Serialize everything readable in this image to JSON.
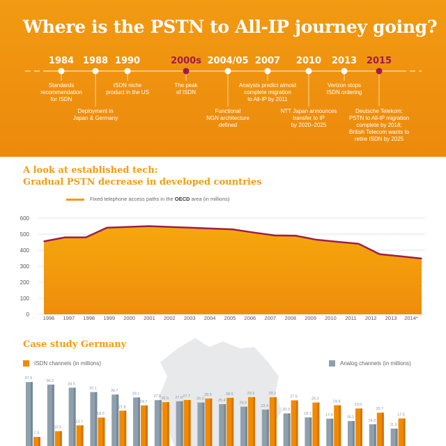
{
  "title": "Where is the PSTN to All-IP journey going?",
  "timeline": [
    {
      "year": "1984",
      "text": "Standards\nrecommendation\nfor ISDN",
      "highlight": false
    },
    {
      "year": "1988",
      "text": "Deployment in\nJapan & Germany",
      "highlight": false
    },
    {
      "year": "1990",
      "text": "ISDN niche\nproduct in the US",
      "highlight": false
    },
    {
      "year": "2000s",
      "text": "The peak\nof ISDN",
      "highlight": true
    },
    {
      "year": "2004/05",
      "text": "Functional\nNGN architecture\ndefined",
      "highlight": false
    },
    {
      "year": "2007",
      "text": "Analysts predict almost\ncomplete migration\nto All-IP by 2011",
      "highlight": false
    },
    {
      "year": "2010",
      "text": "NTT Japan announces\ntransfer to IP\nby 2020–2025",
      "highlight": false
    },
    {
      "year": "2013",
      "text": "Verizon stops\nISDN ordering",
      "highlight": false
    },
    {
      "year": "2015",
      "text": "Deutsche Telekom:\nPSTN to All-IP migration\ncomplete by 2018;\nBritish Telecom wants to\nretire ISDN by 2025",
      "highlight": true
    }
  ],
  "section1": {
    "line1": "A look at established tech:",
    "line2": "Gradual PSTN decrease in developed countries"
  },
  "section2": {
    "title": "Case study Germany"
  },
  "colors": {
    "orange": "#f39c12",
    "highlight": "#a3184e",
    "gray": "#8fa0ad",
    "header_bg": "#ef920f"
  },
  "chart_data": [
    {
      "type": "area",
      "legend": {
        "pre": "Fixed telephone access paths in the ",
        "bold": "OECD",
        "post": " area (in millions)"
      },
      "categories": [
        "1996",
        "1997",
        "1998",
        "1999",
        "2000",
        "2001",
        "2002",
        "2003",
        "2004",
        "2005",
        "2006",
        "2007",
        "2008",
        "2009",
        "2010",
        "2011",
        "2012",
        "2013",
        "2014*"
      ],
      "values": [
        455,
        480,
        480,
        540,
        545,
        550,
        545,
        540,
        535,
        530,
        510,
        492,
        490,
        465,
        452,
        440,
        375,
        362,
        348
      ],
      "yticks": [
        0,
        100,
        200,
        300,
        400,
        500,
        600
      ],
      "ylim": [
        0,
        600
      ],
      "grid": true
    },
    {
      "type": "bar",
      "series": [
        {
          "name": "Analog channels (in millions)",
          "color": "#8fa0ad",
          "values": [
            37.6,
            36.2,
            34.5,
            32.1,
            30.7,
            29.1,
            27.6,
            27.0,
            26.3,
            25.4,
            24.0,
            22.4,
            20.3,
            18.1,
            17.4,
            16.1,
            14.3,
            11.9
          ]
        },
        {
          "name": "ISDN channels (in millions)",
          "color": "#f18a00",
          "values": [
            7.3,
            10.5,
            13.7,
            18.0,
            21.8,
            24.7,
            26.5,
            27.7,
            28.5,
            28.9,
            29.3,
            29.2,
            27.5,
            26.3,
            24.8,
            23.0,
            20.7,
            17.5
          ]
        }
      ]
    }
  ]
}
